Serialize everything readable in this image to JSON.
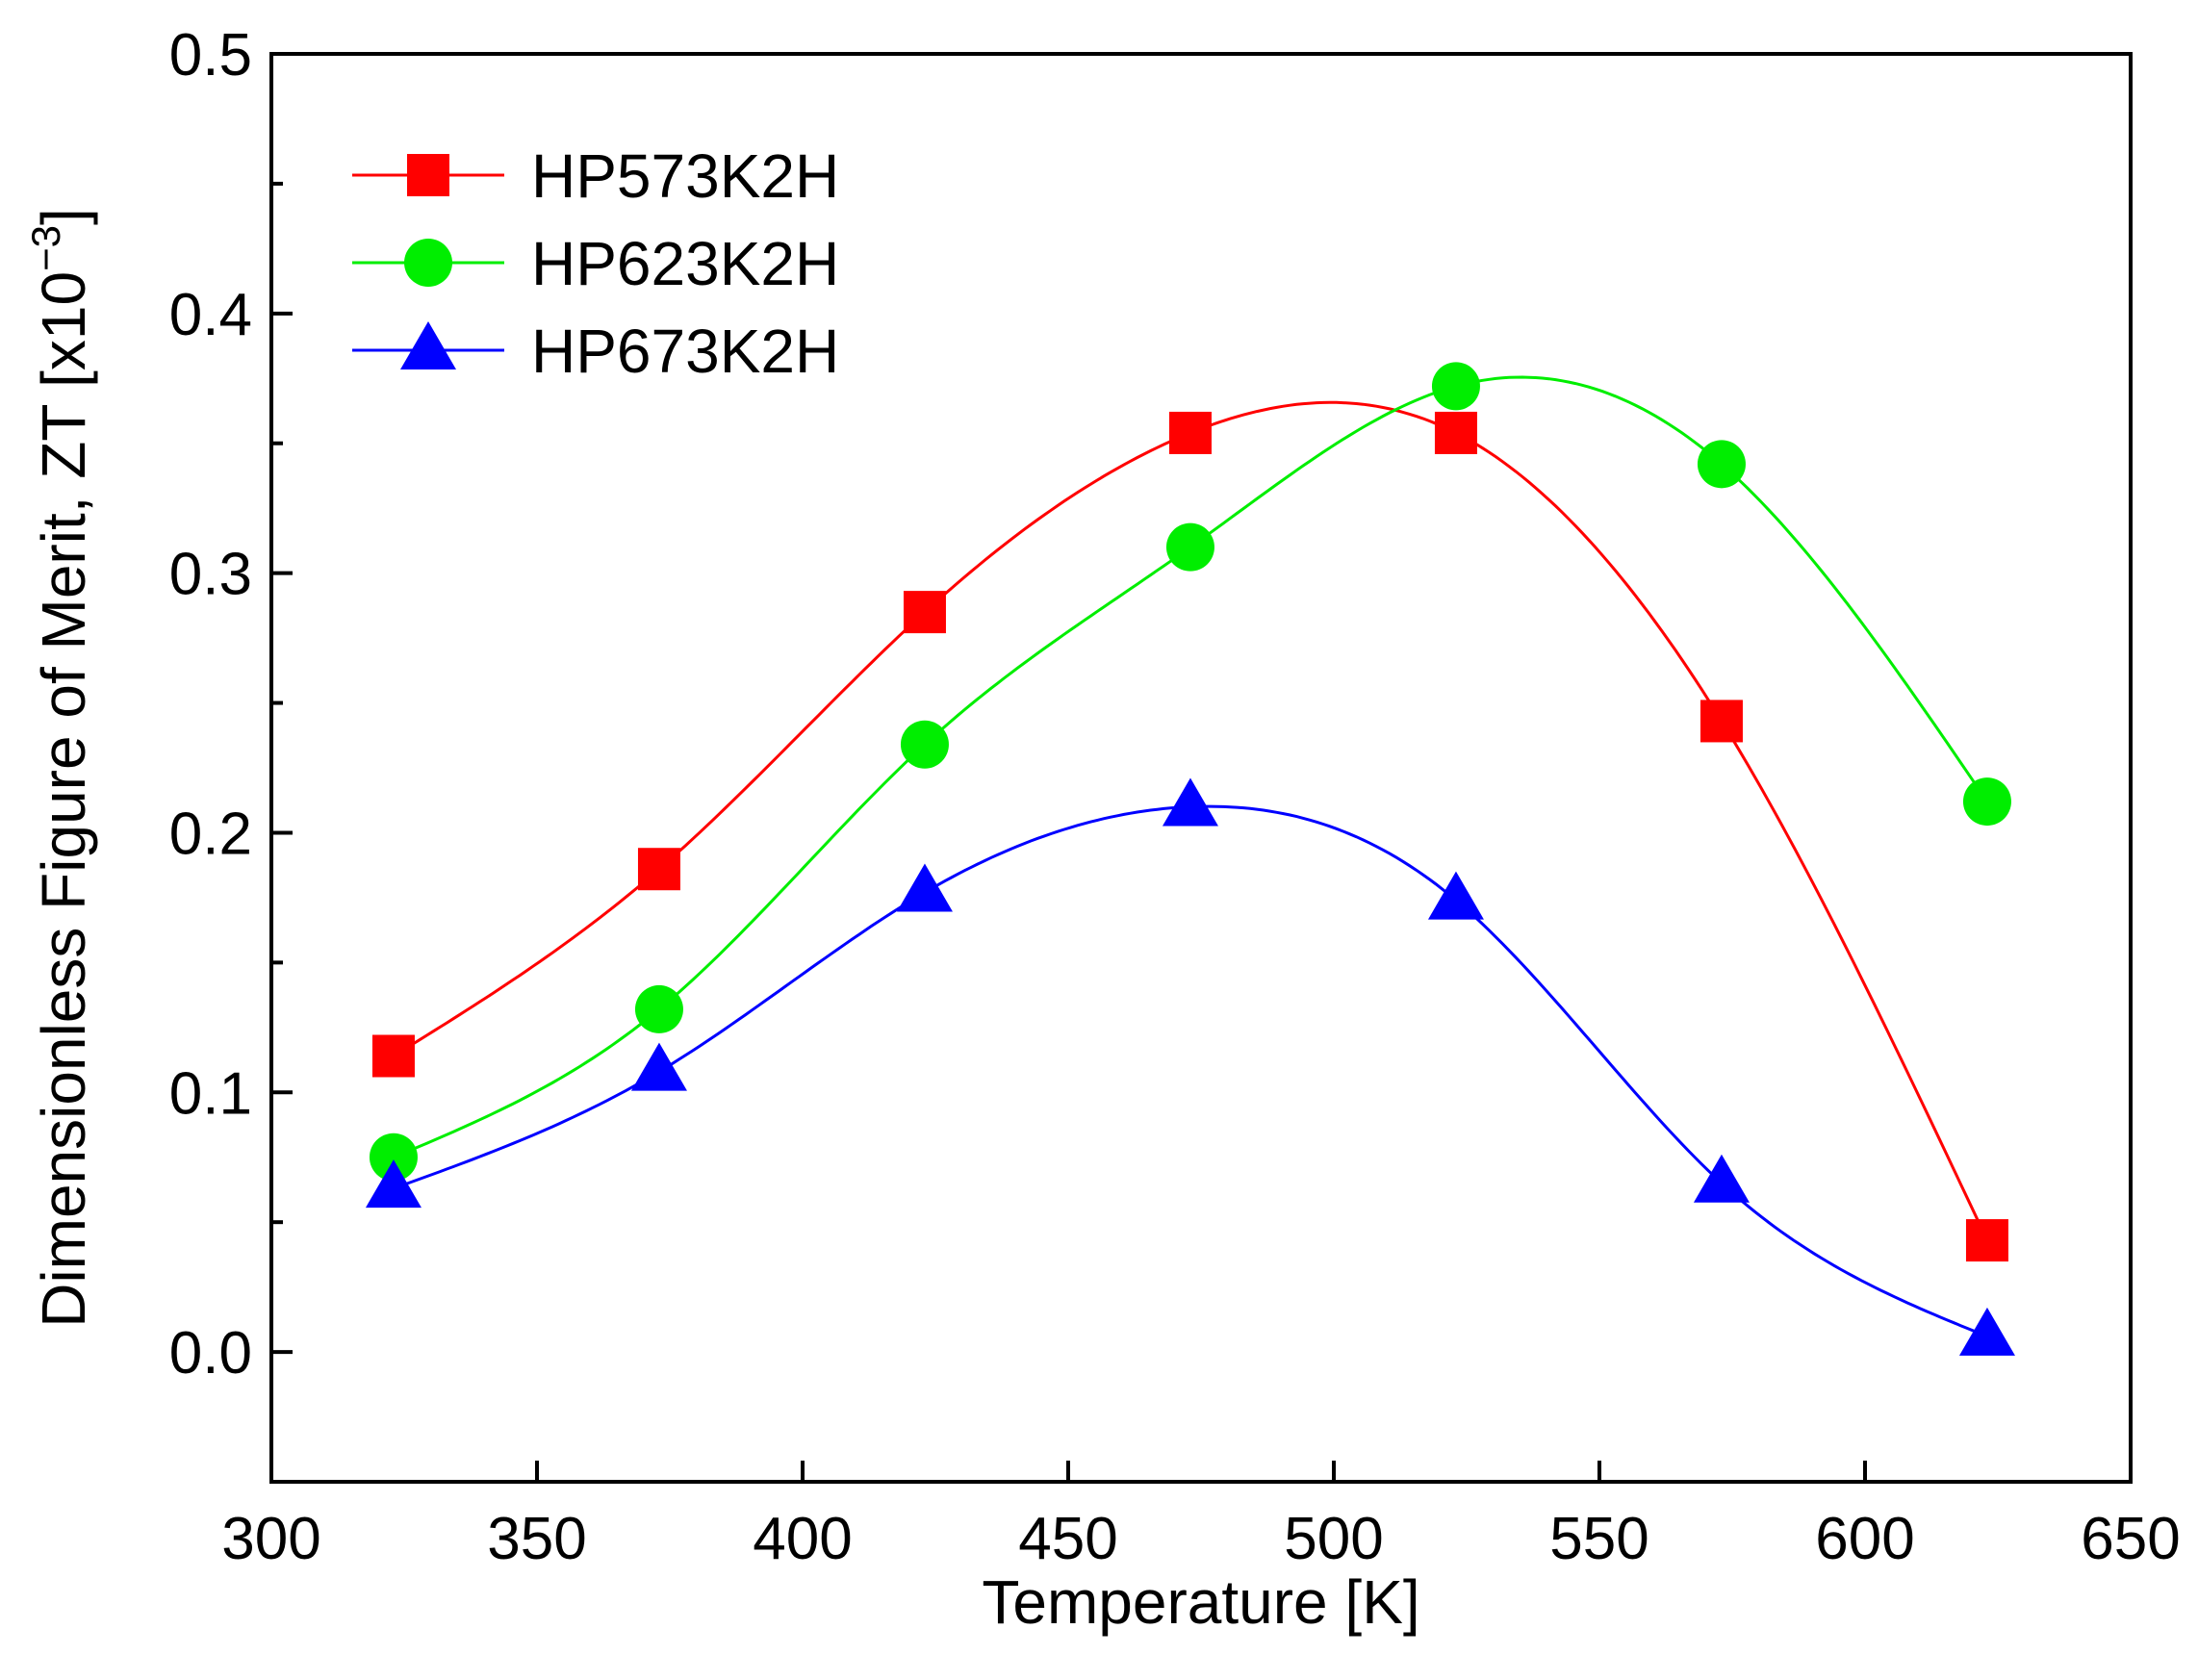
{
  "chart_data": {
    "type": "line",
    "xlabel": "Temperature [K]",
    "ylabel_main": "Dimensionless Figure of Merit,  ZT [x10",
    "ylabel_sup": "−3",
    "ylabel_end": "]",
    "xlim": [
      300,
      650
    ],
    "ylim": [
      -0.05,
      0.5
    ],
    "x_ticks": [
      300,
      350,
      400,
      450,
      500,
      550,
      600,
      650
    ],
    "x_tick_labels": [
      "300",
      "350",
      "400",
      "450",
      "500",
      "550",
      "600",
      "650"
    ],
    "y_ticks": [
      0.0,
      0.1,
      0.2,
      0.3,
      0.4,
      0.5
    ],
    "y_tick_labels": [
      "0.0",
      "0.1",
      "0.2",
      "0.3",
      "0.4",
      "0.5"
    ],
    "y_minor_ticks": [
      -0.05,
      0.05,
      0.15,
      0.25,
      0.35,
      0.45
    ],
    "grid": false,
    "legend_position": "top-left",
    "x": [
      323,
      373,
      423,
      473,
      523,
      573,
      623
    ],
    "series": [
      {
        "name": "HP573K2H",
        "color": "#ff0000",
        "marker": "square",
        "values": [
          0.114,
          0.186,
          0.285,
          0.354,
          0.354,
          0.243,
          0.043
        ]
      },
      {
        "name": "HP623K2H",
        "color": "#00ee00",
        "marker": "circle",
        "values": [
          0.075,
          0.132,
          0.234,
          0.31,
          0.372,
          0.342,
          0.212
        ]
      },
      {
        "name": "HP673K2H",
        "color": "#0000ff",
        "marker": "triangle",
        "values": [
          0.063,
          0.108,
          0.177,
          0.21,
          0.174,
          0.065,
          0.006
        ]
      }
    ]
  }
}
